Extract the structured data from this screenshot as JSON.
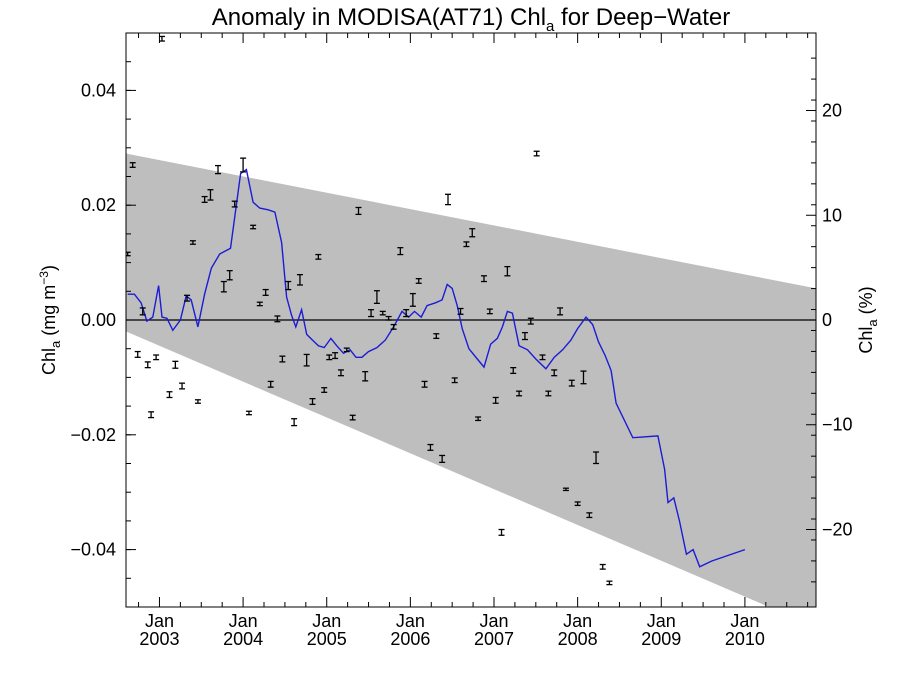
{
  "chart_data": {
    "type": "line",
    "title": "Anomaly in MODISA(AT71) Chl",
    "title_subscript": "a",
    "title_suffix": " for Deep−Water",
    "ylabel_left": {
      "base": "Chl",
      "sub": "a",
      "rest": " (mg m",
      "sup": "−3",
      "close": ")"
    },
    "ylabel_right": {
      "base": "Chl",
      "sub": "a",
      "rest": " (%)"
    },
    "x_axis": {
      "range": [
        2002.6,
        2010.85
      ],
      "ticks": [
        {
          "value": 2003.0,
          "month": "Jan",
          "year": "2003"
        },
        {
          "value": 2004.0,
          "month": "Jan",
          "year": "2004"
        },
        {
          "value": 2005.0,
          "month": "Jan",
          "year": "2005"
        },
        {
          "value": 2006.0,
          "month": "Jan",
          "year": "2006"
        },
        {
          "value": 2007.0,
          "month": "Jan",
          "year": "2007"
        },
        {
          "value": 2008.0,
          "month": "Jan",
          "year": "2008"
        },
        {
          "value": 2009.0,
          "month": "Jan",
          "year": "2009"
        },
        {
          "value": 2010.0,
          "month": "Jan",
          "year": "2010"
        }
      ]
    },
    "y_left": {
      "range": [
        -0.05,
        0.05
      ],
      "ticks": [
        {
          "value": 0.04,
          "label": "0.04"
        },
        {
          "value": 0.02,
          "label": "0.02"
        },
        {
          "value": 0.0,
          "label": "0.00"
        },
        {
          "value": -0.02,
          "label": "−0.02"
        },
        {
          "value": -0.04,
          "label": "−0.04"
        }
      ]
    },
    "y_right": {
      "range": [
        -27.4,
        27.4
      ],
      "ticks": [
        {
          "value": 20,
          "label": "20"
        },
        {
          "value": 10,
          "label": "10"
        },
        {
          "value": 0,
          "label": "0"
        },
        {
          "value": -10,
          "label": "−10"
        },
        {
          "value": -20,
          "label": "−20"
        }
      ]
    },
    "trend_band": {
      "upper": [
        [
          2002.6,
          0.029
        ],
        [
          2010.85,
          0.0055
        ]
      ],
      "lower": [
        [
          2002.6,
          -0.002
        ],
        [
          2010.85,
          -0.0535
        ]
      ],
      "color": "#bebebe"
    },
    "zero_line": 0.0,
    "series": [
      {
        "kind": "line",
        "color": "#1c1cd6",
        "points": [
          [
            2002.62,
            0.0045
          ],
          [
            2002.7,
            0.0045
          ],
          [
            2002.78,
            0.003
          ],
          [
            2002.85,
            -0.0002
          ],
          [
            2002.92,
            0.0005
          ],
          [
            2002.99,
            0.006
          ],
          [
            2003.03,
            0.0005
          ],
          [
            2003.09,
            0.0003
          ],
          [
            2003.16,
            -0.0018
          ],
          [
            2003.25,
            0.0
          ],
          [
            2003.32,
            0.0042
          ],
          [
            2003.38,
            0.0035
          ],
          [
            2003.46,
            -0.0012
          ],
          [
            2003.54,
            0.0045
          ],
          [
            2003.62,
            0.009
          ],
          [
            2003.72,
            0.0115
          ],
          [
            2003.85,
            0.0125
          ],
          [
            2003.97,
            0.0255
          ],
          [
            2004.04,
            0.0262
          ],
          [
            2004.12,
            0.0205
          ],
          [
            2004.2,
            0.0195
          ],
          [
            2004.3,
            0.0192
          ],
          [
            2004.38,
            0.0188
          ],
          [
            2004.46,
            0.0135
          ],
          [
            2004.52,
            0.004
          ],
          [
            2004.58,
            0.0008
          ],
          [
            2004.63,
            -0.0012
          ],
          [
            2004.7,
            0.0018
          ],
          [
            2004.76,
            -0.0025
          ],
          [
            2004.83,
            -0.0035
          ],
          [
            2004.9,
            -0.0045
          ],
          [
            2004.97,
            -0.0048
          ],
          [
            2005.05,
            -0.0032
          ],
          [
            2005.12,
            -0.0045
          ],
          [
            2005.2,
            -0.0058
          ],
          [
            2005.28,
            -0.0052
          ],
          [
            2005.35,
            -0.0065
          ],
          [
            2005.42,
            -0.0065
          ],
          [
            2005.5,
            -0.0055
          ],
          [
            2005.6,
            -0.0048
          ],
          [
            2005.7,
            -0.0035
          ],
          [
            2005.8,
            -0.0012
          ],
          [
            2005.9,
            0.0015
          ],
          [
            2005.98,
            0.0005
          ],
          [
            2006.05,
            0.0015
          ],
          [
            2006.13,
            0.0005
          ],
          [
            2006.2,
            0.0025
          ],
          [
            2006.3,
            0.003
          ],
          [
            2006.38,
            0.0035
          ],
          [
            2006.44,
            0.0062
          ],
          [
            2006.5,
            0.0055
          ],
          [
            2006.56,
            0.0025
          ],
          [
            2006.62,
            -0.0015
          ],
          [
            2006.7,
            -0.005
          ],
          [
            2006.8,
            -0.0068
          ],
          [
            2006.88,
            -0.0082
          ],
          [
            2006.96,
            -0.0042
          ],
          [
            2007.04,
            -0.0032
          ],
          [
            2007.1,
            -0.0012
          ],
          [
            2007.16,
            0.0015
          ],
          [
            2007.22,
            0.0012
          ],
          [
            2007.3,
            -0.0045
          ],
          [
            2007.4,
            -0.0052
          ],
          [
            2007.5,
            -0.0068
          ],
          [
            2007.62,
            -0.0085
          ],
          [
            2007.72,
            -0.0065
          ],
          [
            2007.82,
            -0.0052
          ],
          [
            2007.92,
            -0.0035
          ],
          [
            2008.0,
            -0.0015
          ],
          [
            2008.1,
            0.0005
          ],
          [
            2008.18,
            -0.0008
          ],
          [
            2008.25,
            -0.0038
          ],
          [
            2008.33,
            -0.0062
          ],
          [
            2008.4,
            -0.0088
          ],
          [
            2008.46,
            -0.0145
          ],
          [
            2008.66,
            -0.0205
          ],
          [
            2008.96,
            -0.0202
          ],
          [
            2009.04,
            -0.026
          ],
          [
            2009.08,
            -0.0318
          ],
          [
            2009.15,
            -0.031
          ],
          [
            2009.22,
            -0.0352
          ],
          [
            2009.3,
            -0.0408
          ],
          [
            2009.38,
            -0.04
          ],
          [
            2009.46,
            -0.043
          ],
          [
            2009.6,
            -0.042
          ],
          [
            2010.0,
            -0.04
          ]
        ]
      },
      {
        "kind": "errorbar",
        "color": "#000000",
        "points": [
          [
            2002.55,
            -0.0095,
            0.0004
          ],
          [
            2002.62,
            0.0115,
            0.0003
          ],
          [
            2002.68,
            0.027,
            0.0004
          ],
          [
            2002.74,
            -0.006,
            0.0005
          ],
          [
            2002.8,
            0.0015,
            0.0006
          ],
          [
            2002.86,
            -0.0078,
            0.0005
          ],
          [
            2002.9,
            -0.0165,
            0.0005
          ],
          [
            2002.96,
            -0.0065,
            0.0004
          ],
          [
            2003.03,
            0.049,
            0.0004
          ],
          [
            2003.12,
            -0.013,
            0.0005
          ],
          [
            2003.19,
            -0.0078,
            0.0006
          ],
          [
            2003.27,
            -0.0115,
            0.0005
          ],
          [
            2003.33,
            0.0038,
            0.0005
          ],
          [
            2003.4,
            0.0135,
            0.0003
          ],
          [
            2003.46,
            -0.0142,
            0.0003
          ],
          [
            2003.54,
            0.021,
            0.0005
          ],
          [
            2003.61,
            0.0218,
            0.0009
          ],
          [
            2003.7,
            0.0262,
            0.0007
          ],
          [
            2003.77,
            0.0058,
            0.0009
          ],
          [
            2003.84,
            0.0078,
            0.0008
          ],
          [
            2003.9,
            0.0202,
            0.0005
          ],
          [
            2004.0,
            0.027,
            0.0012
          ],
          [
            2004.07,
            -0.0162,
            0.0003
          ],
          [
            2004.12,
            0.0162,
            0.0003
          ],
          [
            2004.2,
            0.0028,
            0.0003
          ],
          [
            2004.27,
            0.0048,
            0.0005
          ],
          [
            2004.33,
            -0.0112,
            0.0005
          ],
          [
            2004.41,
            0.0002,
            0.0005
          ],
          [
            2004.47,
            -0.0068,
            0.0005
          ],
          [
            2004.54,
            0.006,
            0.0007
          ],
          [
            2004.61,
            -0.0178,
            0.0006
          ],
          [
            2004.68,
            0.007,
            0.0009
          ],
          [
            2004.76,
            -0.007,
            0.001
          ],
          [
            2004.83,
            -0.0142,
            0.0005
          ],
          [
            2004.9,
            0.011,
            0.0004
          ],
          [
            2004.97,
            -0.0122,
            0.0004
          ],
          [
            2005.03,
            -0.0065,
            0.0004
          ],
          [
            2005.1,
            -0.0062,
            0.0005
          ],
          [
            2005.17,
            -0.0092,
            0.0005
          ],
          [
            2005.24,
            -0.0052,
            0.0003
          ],
          [
            2005.31,
            -0.017,
            0.0004
          ],
          [
            2005.38,
            0.019,
            0.0006
          ],
          [
            2005.46,
            -0.0098,
            0.0008
          ],
          [
            2005.53,
            0.0012,
            0.0006
          ],
          [
            2005.6,
            0.004,
            0.0011
          ],
          [
            2005.67,
            0.0012,
            0.0003
          ],
          [
            2005.74,
            0.0003,
            0.0003
          ],
          [
            2005.8,
            -0.0012,
            0.0004
          ],
          [
            2005.88,
            0.012,
            0.0006
          ],
          [
            2005.95,
            0.0012,
            0.0006
          ],
          [
            2006.03,
            0.0035,
            0.0011
          ],
          [
            2006.1,
            0.0068,
            0.0004
          ],
          [
            2006.17,
            -0.0112,
            0.0005
          ],
          [
            2006.24,
            -0.0222,
            0.0005
          ],
          [
            2006.31,
            -0.0028,
            0.0004
          ],
          [
            2006.38,
            -0.0242,
            0.0006
          ],
          [
            2006.45,
            0.021,
            0.0009
          ],
          [
            2006.53,
            -0.0105,
            0.0004
          ],
          [
            2006.6,
            0.0015,
            0.0005
          ],
          [
            2006.67,
            0.0132,
            0.0004
          ],
          [
            2006.74,
            0.0152,
            0.0007
          ],
          [
            2006.81,
            -0.0172,
            0.0003
          ],
          [
            2006.88,
            0.0072,
            0.0005
          ],
          [
            2006.95,
            0.0015,
            0.0004
          ],
          [
            2007.02,
            -0.014,
            0.0005
          ],
          [
            2007.09,
            -0.037,
            0.0005
          ],
          [
            2007.16,
            0.0085,
            0.0008
          ],
          [
            2007.23,
            -0.0088,
            0.0005
          ],
          [
            2007.3,
            -0.0128,
            0.0004
          ],
          [
            2007.37,
            -0.0028,
            0.0006
          ],
          [
            2007.44,
            -0.0002,
            0.0005
          ],
          [
            2007.51,
            0.029,
            0.0004
          ],
          [
            2007.58,
            -0.0065,
            0.0004
          ],
          [
            2007.65,
            -0.0128,
            0.0004
          ],
          [
            2007.72,
            -0.0092,
            0.0005
          ],
          [
            2007.79,
            0.0015,
            0.0006
          ],
          [
            2007.86,
            -0.0295,
            0.0002
          ],
          [
            2007.93,
            -0.011,
            0.0005
          ],
          [
            2008.0,
            -0.032,
            0.0003
          ],
          [
            2008.07,
            -0.01,
            0.0011
          ],
          [
            2008.14,
            -0.034,
            0.0004
          ],
          [
            2008.22,
            -0.024,
            0.001
          ],
          [
            2008.3,
            -0.043,
            0.0004
          ],
          [
            2008.38,
            -0.0458,
            0.0003
          ]
        ]
      }
    ]
  }
}
